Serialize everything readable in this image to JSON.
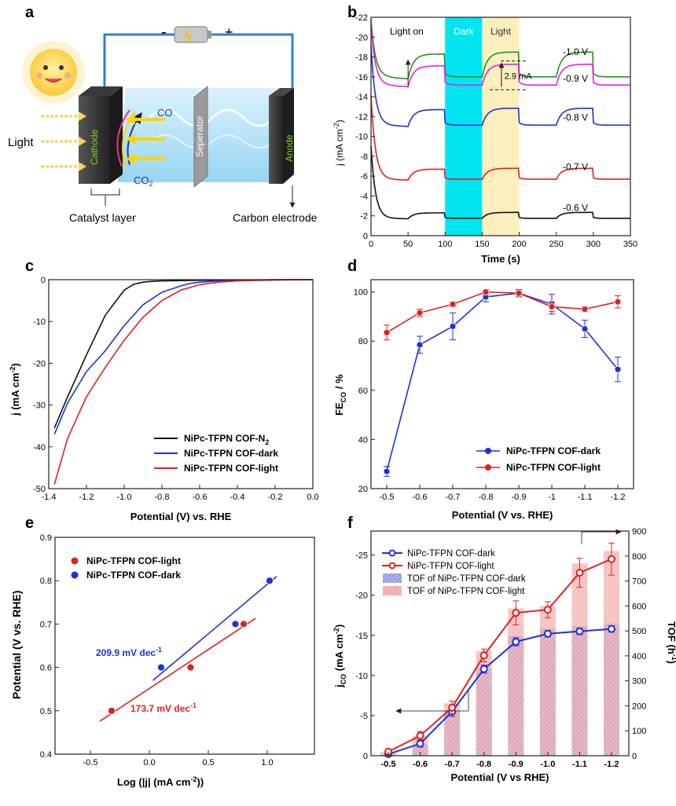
{
  "panel_labels": {
    "a": "a",
    "b": "b",
    "c": "c",
    "d": "d",
    "e": "e",
    "f": "f"
  },
  "schematic": {
    "battery_minus": "-",
    "battery_plus": "+",
    "light": "Light",
    "cathode": "Cathode",
    "separator": "Seperator",
    "anode": "Anode",
    "co": "CO",
    "co2": "CO",
    "co2_sub": "2",
    "catalyst_layer": "Catalyst layer",
    "carbon_electrode": "Carbon electrode"
  },
  "chart_data": [
    {
      "id": "b",
      "type": "line",
      "xlabel": "Time (s)",
      "ylabel": "j (mA cm",
      "ylabel_sup": "-2",
      "xlim": [
        0,
        350
      ],
      "ylim": [
        0,
        -22
      ],
      "xticks": [
        "0",
        "50",
        "100",
        "150",
        "200",
        "250",
        "300",
        "350"
      ],
      "yticks": [
        "0",
        "-2",
        "-4",
        "-6",
        "-8",
        "-10",
        "-12",
        "-14",
        "-16",
        "-18",
        "-20",
        "-22"
      ],
      "regions": [
        {
          "label": "Dark",
          "x0": 100,
          "x1": 150,
          "color": "#00e5f0"
        },
        {
          "label": "Light",
          "x0": 150,
          "x1": 200,
          "color": "#fcefbe"
        }
      ],
      "annotations": {
        "light_on": "Light on",
        "delta": "2.9 mA"
      },
      "series": [
        {
          "name": "-1.0 V",
          "color": "#1a9a1a",
          "base": -15.8,
          "step": -2.5,
          "start": -21.5
        },
        {
          "name": "-0.9 V",
          "color": "#e81ee8",
          "base": -15.0,
          "step": -2.1,
          "start": -21.0
        },
        {
          "name": "-0.8 V",
          "color": "#1c32dc",
          "base": -11.0,
          "step": -1.7,
          "start": -19.0
        },
        {
          "name": "-0.7 V",
          "color": "#e02020",
          "base": -5.6,
          "step": -1.1,
          "start": -14.0
        },
        {
          "name": "-0.6 V",
          "color": "#111111",
          "base": -1.7,
          "step": -0.6,
          "start": -9.0
        }
      ]
    },
    {
      "id": "c",
      "type": "line",
      "xlabel": "Potential (V) vs. RHE",
      "ylabel": "j (mA cm",
      "ylabel_sup": "-2",
      "xlim": [
        -1.4,
        0.0
      ],
      "ylim": [
        -50,
        0
      ],
      "xticks": [
        "-1.4",
        "-1.2",
        "-1.0",
        "-0.8",
        "-0.6",
        "-0.4",
        "-0.2",
        "0.0"
      ],
      "yticks": [
        "0",
        "-10",
        "-20",
        "-30",
        "-40",
        "-50"
      ],
      "legend_position": "bottom-right",
      "series": [
        {
          "name": "NiPc-TFPN COF-N",
          "name_sub": "2",
          "color": "#111111",
          "x": [
            -1.37,
            -1.3,
            -1.2,
            -1.1,
            -1.0,
            -0.95,
            -0.9,
            -0.85,
            -0.8,
            -0.6,
            -0.4,
            -0.2,
            0.0
          ],
          "y": [
            -35.5,
            -28,
            -18,
            -8.5,
            -2.5,
            -1.1,
            -0.6,
            -0.4,
            -0.3,
            -0.15,
            -0.1,
            0,
            0
          ]
        },
        {
          "name": "NiPc-TFPN COF-dark",
          "color": "#1c32dc",
          "x": [
            -1.37,
            -1.3,
            -1.2,
            -1.1,
            -1.0,
            -0.9,
            -0.8,
            -0.7,
            -0.65,
            -0.6,
            -0.5,
            -0.4,
            -0.2,
            0.0
          ],
          "y": [
            -37,
            -29.5,
            -22,
            -17,
            -11,
            -6,
            -3,
            -1.5,
            -0.9,
            -0.6,
            -0.3,
            -0.2,
            -0.05,
            0
          ]
        },
        {
          "name": "NiPc-TFPN COF-light",
          "color": "#e02020",
          "x": [
            -1.37,
            -1.3,
            -1.2,
            -1.1,
            -1.0,
            -0.9,
            -0.8,
            -0.7,
            -0.6,
            -0.5,
            -0.4,
            -0.2,
            0.0
          ],
          "y": [
            -49,
            -38,
            -28,
            -21,
            -14.5,
            -9,
            -5,
            -2.5,
            -1.2,
            -0.6,
            -0.3,
            -0.1,
            0
          ]
        }
      ]
    },
    {
      "id": "d",
      "type": "line",
      "xlabel": "Potential (V vs. RHE)",
      "ylabel": "FE",
      "ylabel_sub": "CO",
      "ylabel_tail": " / %",
      "categories": [
        "-0.5",
        "-0.6",
        "-0.7",
        "-0.8",
        "-0.9",
        "-1",
        "-1.1",
        "-1.2"
      ],
      "ylim": [
        20,
        105
      ],
      "yticks": [
        "20",
        "40",
        "60",
        "80",
        "100"
      ],
      "legend_position": "bottom-right",
      "series": [
        {
          "name": "NiPc-TFPN COF-dark",
          "color": "#1c32dc",
          "values": [
            27,
            78.5,
            86,
            98,
            99.5,
            95,
            85,
            68.5
          ],
          "err": [
            2,
            3.5,
            5.5,
            2,
            1.5,
            4,
            3.5,
            5
          ]
        },
        {
          "name": "NiPc-TFPN COF-light",
          "color": "#e02020",
          "values": [
            83.5,
            91.5,
            95,
            100,
            99.5,
            94,
            93,
            96
          ],
          "err": [
            3,
            1.5,
            1,
            1,
            1,
            2,
            1,
            2.5
          ]
        }
      ]
    },
    {
      "id": "e",
      "type": "scatter",
      "xlabel": "Log (|j| (mA cm",
      "xlabel_sup": "-2",
      "xlabel_tail": "))",
      "ylabel": "Potential (V vs. RHE)",
      "xlim": [
        -0.8,
        1.4
      ],
      "ylim": [
        0.4,
        0.9
      ],
      "xticks": [
        "-0.5",
        "0.0",
        "0.5",
        "1.0"
      ],
      "yticks": [
        "0.4",
        "0.5",
        "0.6",
        "0.7",
        "0.8",
        "0.9"
      ],
      "legend_position": "top-left",
      "annotations": {
        "dark_slope": "209.9 mV dec",
        "dark_slope_sup": "-1",
        "light_slope": "173.7 mV dec",
        "light_slope_sup": "-1"
      },
      "series": [
        {
          "name": "NiPc-TFPN COF-light",
          "color": "#e02020",
          "x": [
            -0.32,
            0.35,
            0.8
          ],
          "y": [
            0.5,
            0.6,
            0.7
          ],
          "fit": [
            [
              -0.42,
              0.476
            ],
            [
              0.9,
              0.713
            ]
          ]
        },
        {
          "name": "NiPc-TFPN COF-dark",
          "color": "#1c32dc",
          "x": [
            0.1,
            0.73,
            1.02
          ],
          "y": [
            0.6,
            0.7,
            0.8
          ],
          "fit": [
            [
              0.03,
              0.57
            ],
            [
              1.08,
              0.81
            ]
          ]
        }
      ]
    },
    {
      "id": "f",
      "type": "bar",
      "xlabel": "Potential (V vs RHE)",
      "ylabel": "j",
      "ylabel_sub": "CO",
      "ylabel_tail": " (mA cm",
      "ylabel_sup": "-2",
      "y2label": "TOF (h",
      "y2label_sup": "-1",
      "categories": [
        "-0.5",
        "-0.6",
        "-0.7",
        "-0.8",
        "-0.9",
        "-1.0",
        "-1.1",
        "-1.2"
      ],
      "ylim": [
        0,
        -28
      ],
      "yticks": [
        "0",
        "-5",
        "-10",
        "-15",
        "-20",
        "-25"
      ],
      "y2lim": [
        0,
        900
      ],
      "y2ticks": [
        "0",
        "100",
        "200",
        "300",
        "400",
        "500",
        "600",
        "700",
        "800",
        "900"
      ],
      "legend_position": "top-left",
      "series": [
        {
          "name": "NiPc-TFPN COF-dark",
          "kind": "line",
          "color": "#1c32dc",
          "values": [
            -0.2,
            -1.5,
            -5.5,
            -10.8,
            -14.2,
            -15.2,
            -15.5,
            -15.8
          ],
          "err": [
            0.2,
            0.4,
            0.6,
            0.5,
            0.5,
            0.4,
            0.4,
            0.4
          ]
        },
        {
          "name": "NiPc-TFPN COF-light",
          "kind": "line",
          "color": "#e02020",
          "values": [
            -0.5,
            -2.5,
            -6.0,
            -12.5,
            -17.8,
            -18.2,
            -22.8,
            -24.5
          ],
          "err": [
            0.3,
            0.5,
            0.8,
            0.8,
            1.5,
            1.0,
            1.8,
            2.0
          ]
        },
        {
          "name": "TOF of NiPc-TFPN COF-dark",
          "kind": "bar",
          "color": "#8e96e6",
          "values": [
            5,
            45,
            180,
            350,
            480,
            510,
            520,
            530
          ]
        },
        {
          "name": "TOF of NiPc-TFPN COF-light",
          "kind": "bar",
          "color": "#f2a0a0",
          "values": [
            15,
            80,
            210,
            420,
            590,
            600,
            770,
            820
          ]
        }
      ]
    }
  ]
}
